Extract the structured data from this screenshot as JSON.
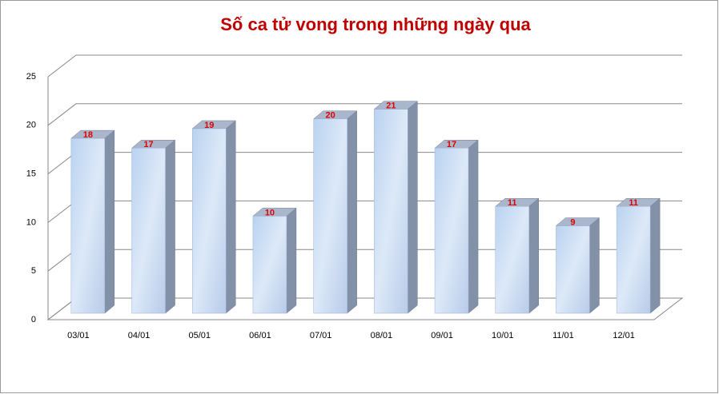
{
  "chart_data": {
    "type": "bar3d",
    "title": "Số ca tử vong trong những ngày qua",
    "categories": [
      "03/01",
      "04/01",
      "05/01",
      "06/01",
      "07/01",
      "08/01",
      "09/01",
      "10/01",
      "11/01",
      "12/01"
    ],
    "values": [
      18,
      17,
      19,
      10,
      20,
      21,
      17,
      11,
      9,
      11
    ],
    "color": "#c6d9f1",
    "label_color": "#e00000",
    "ylim": [
      0,
      25
    ],
    "yticks": [
      0,
      5,
      10,
      15,
      20,
      25
    ],
    "grid": true
  }
}
